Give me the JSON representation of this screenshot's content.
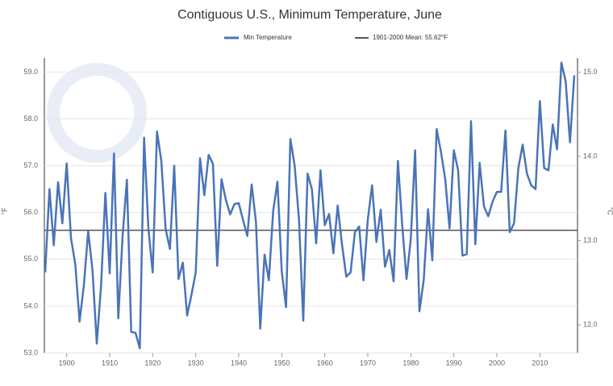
{
  "chart_data": {
    "type": "line",
    "title": "Contiguous U.S., Minimum Temperature, June",
    "ylabel": "°F",
    "y2label": "°C",
    "x": [
      1895,
      1896,
      1897,
      1898,
      1899,
      1900,
      1901,
      1902,
      1903,
      1904,
      1905,
      1906,
      1907,
      1908,
      1909,
      1910,
      1911,
      1912,
      1913,
      1914,
      1915,
      1916,
      1917,
      1918,
      1919,
      1920,
      1921,
      1922,
      1923,
      1924,
      1925,
      1926,
      1927,
      1928,
      1929,
      1930,
      1931,
      1932,
      1933,
      1934,
      1935,
      1936,
      1937,
      1938,
      1939,
      1940,
      1941,
      1942,
      1943,
      1944,
      1945,
      1946,
      1947,
      1948,
      1949,
      1950,
      1951,
      1952,
      1953,
      1954,
      1955,
      1956,
      1957,
      1958,
      1959,
      1960,
      1961,
      1962,
      1963,
      1964,
      1965,
      1966,
      1967,
      1968,
      1969,
      1970,
      1971,
      1972,
      1973,
      1974,
      1975,
      1976,
      1977,
      1978,
      1979,
      1980,
      1981,
      1982,
      1983,
      1984,
      1985,
      1986,
      1987,
      1988,
      1989,
      1990,
      1991,
      1992,
      1993,
      1994,
      1995,
      1996,
      1997,
      1998,
      1999,
      2000,
      2001,
      2002,
      2003,
      2004,
      2005,
      2006,
      2007,
      2008,
      2009,
      2010,
      2011,
      2012,
      2013,
      2014,
      2015,
      2016,
      2017,
      2018
    ],
    "series": [
      {
        "name": "Min Temperature",
        "color": "#4a74b8",
        "values": [
          54.72,
          56.5,
          55.3,
          56.65,
          55.77,
          57.05,
          55.45,
          54.9,
          53.67,
          54.45,
          55.6,
          54.77,
          53.2,
          54.45,
          56.42,
          54.7,
          57.26,
          53.74,
          55.5,
          56.7,
          53.45,
          53.43,
          53.1,
          57.6,
          55.65,
          54.72,
          57.73,
          57.1,
          55.65,
          55.22,
          57.0,
          54.58,
          54.93,
          53.8,
          54.24,
          54.72,
          57.16,
          56.37,
          57.23,
          57.04,
          54.86,
          56.71,
          56.27,
          55.96,
          56.18,
          56.2,
          55.84,
          55.5,
          56.6,
          55.8,
          53.52,
          55.1,
          54.55,
          56.03,
          56.66,
          54.74,
          53.98,
          57.57,
          57.0,
          55.85,
          53.69,
          56.83,
          56.5,
          55.34,
          56.9,
          55.73,
          55.97,
          55.13,
          56.15,
          55.32,
          54.63,
          54.72,
          55.58,
          55.7,
          54.55,
          55.85,
          56.58,
          55.37,
          56.06,
          54.84,
          55.2,
          54.53,
          57.1,
          55.73,
          54.58,
          55.44,
          57.33,
          53.89,
          54.56,
          56.07,
          54.98,
          57.78,
          57.3,
          56.71,
          55.66,
          57.33,
          56.9,
          55.08,
          55.11,
          57.95,
          55.32,
          57.06,
          56.13,
          55.92,
          56.23,
          56.44,
          56.44,
          57.75,
          55.58,
          55.77,
          56.95,
          57.45,
          56.83,
          56.58,
          56.5,
          58.38,
          56.95,
          56.9,
          57.88,
          57.35,
          59.2,
          58.8,
          57.5,
          58.93
        ]
      }
    ],
    "mean": {
      "name": "1901-2000 Mean: 55.62°F",
      "value": 55.62,
      "color": "#555555"
    },
    "xlim": [
      1895,
      2018
    ],
    "xticks": [
      1900,
      1910,
      1920,
      1930,
      1940,
      1950,
      1960,
      1970,
      1980,
      1990,
      2000,
      2010
    ],
    "ylim": [
      53,
      59.3
    ],
    "yticks": [
      {
        "value": 53,
        "label": "53.0"
      },
      {
        "value": 54,
        "label": "54.0"
      },
      {
        "value": 55,
        "label": "55.0"
      },
      {
        "value": 56,
        "label": "56.0"
      },
      {
        "value": 57,
        "label": "57.0"
      },
      {
        "value": 58,
        "label": "58.0"
      },
      {
        "value": 59,
        "label": "59.0"
      }
    ],
    "y2lim": [
      11.6667,
      15.1667
    ],
    "y2ticks": [
      {
        "value": 12,
        "label": "12.0"
      },
      {
        "value": 13,
        "label": "13.0"
      },
      {
        "value": 14,
        "label": "14.0"
      },
      {
        "value": 15,
        "label": "15.0"
      }
    ],
    "grid": true
  }
}
